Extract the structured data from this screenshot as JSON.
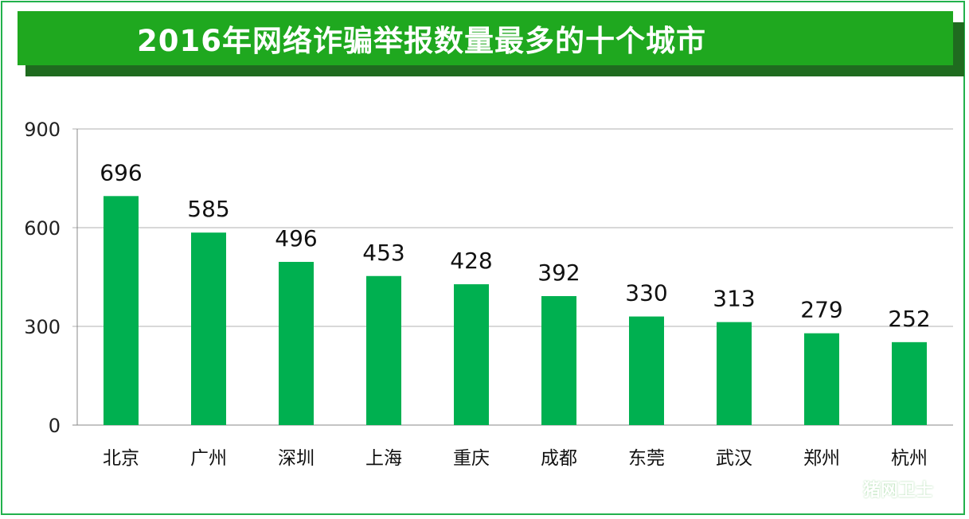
{
  "banner": {
    "title": "2016年网络诈骗举报数量最多的十个城市"
  },
  "colors": {
    "bar": "#00b050",
    "banner": "#1fa81f",
    "banner_shadow": "#1f6b1f",
    "frame": "#22b14c"
  },
  "watermark": {
    "text": "猪网卫士",
    "icon": "shield-logo-icon"
  },
  "chart_data": {
    "type": "bar",
    "title": "2016年网络诈骗举报数量最多的十个城市",
    "categories": [
      "北京",
      "广州",
      "深圳",
      "上海",
      "重庆",
      "成都",
      "东莞",
      "武汉",
      "郑州",
      "杭州"
    ],
    "values": [
      696,
      585,
      496,
      453,
      428,
      392,
      330,
      313,
      279,
      252
    ],
    "yticks": [
      0,
      300,
      600,
      900
    ],
    "ylim": [
      0,
      900
    ],
    "grid": true,
    "xlabel": "",
    "ylabel": ""
  }
}
